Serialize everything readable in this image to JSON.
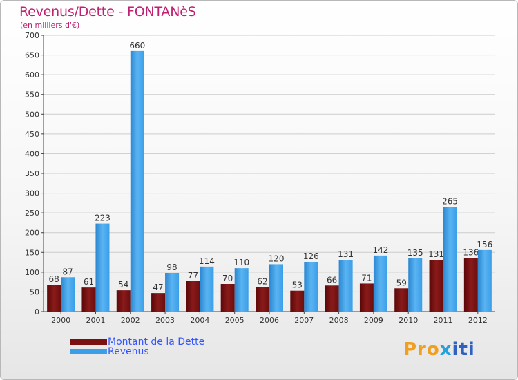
{
  "title": "Revenus/Dette - FONTANèS",
  "subtitle": "(en milliers d'€)",
  "logo": {
    "part1": "Pro",
    "part2": "x",
    "part3": "iti"
  },
  "colors": {
    "dette": "#7a1010",
    "revenus": "#3a9ee8",
    "axis": "#444444",
    "grid": "#cccccc"
  },
  "chart_data": {
    "type": "bar",
    "title": "Revenus/Dette - FONTANèS",
    "subtitle": "(en milliers d'€)",
    "categories": [
      "2000",
      "2001",
      "2002",
      "2003",
      "2004",
      "2005",
      "2006",
      "2007",
      "2008",
      "2009",
      "2010",
      "2011",
      "2012"
    ],
    "series": [
      {
        "name": "Montant de la Dette",
        "values": [
          68,
          61,
          54,
          47,
          77,
          70,
          62,
          53,
          66,
          71,
          59,
          131,
          136
        ]
      },
      {
        "name": "Revenus",
        "values": [
          87,
          223,
          660,
          98,
          114,
          110,
          120,
          126,
          131,
          142,
          135,
          265,
          156
        ]
      }
    ],
    "ylim": [
      0,
      700
    ],
    "yticks": [
      0,
      50,
      100,
      150,
      200,
      250,
      300,
      350,
      400,
      450,
      500,
      550,
      600,
      650,
      700
    ],
    "grid": true,
    "legend": "bottom-left"
  }
}
